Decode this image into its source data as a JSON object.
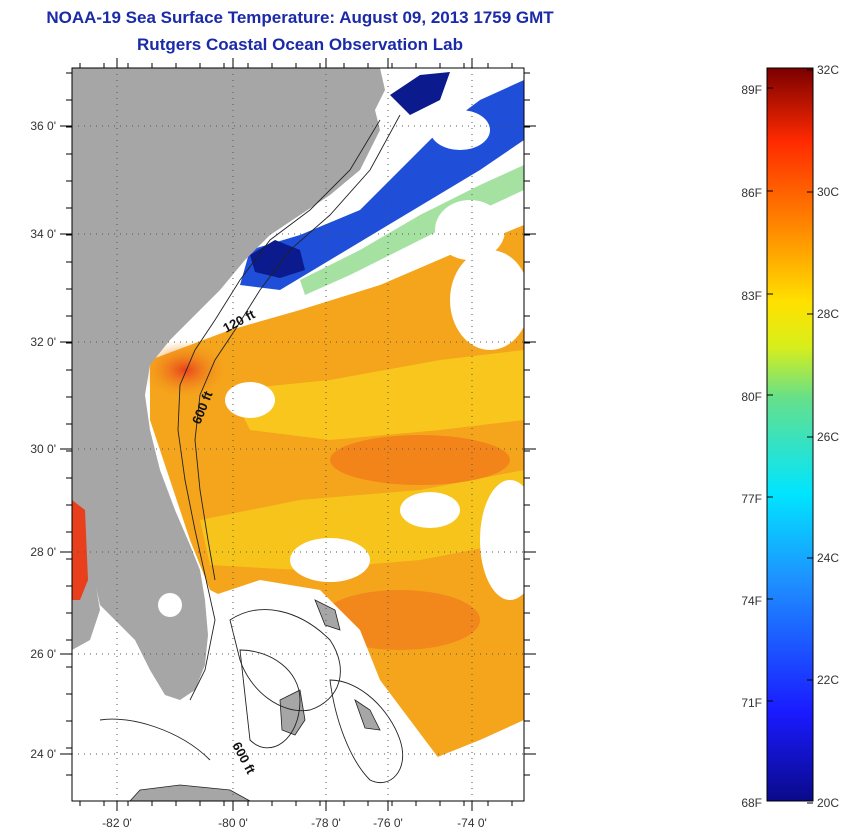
{
  "header": {
    "title": "NOAA-19 Sea Surface Temperature:  August 09, 2013 1759 GMT",
    "subtitle": "Rutgers Coastal Ocean Observation Lab"
  },
  "map": {
    "lat_labels": [
      "36 0'",
      "34 0'",
      "32 0'",
      "30 0'",
      "28 0'",
      "26 0'",
      "24 0'"
    ],
    "lon_labels": [
      "-82 0'",
      "-80 0'",
      "-78 0'",
      "-76 0'",
      "-74 0'"
    ],
    "contour_labels": [
      "120 ft",
      "600 ft",
      "600 ft"
    ],
    "colors": {
      "land": "#a6a6a6",
      "cloud": "#ffffff",
      "warm": "#f29a1a",
      "hot": "#e8401c",
      "cool": "#1f4fd8",
      "cold": "#0b1a8c"
    }
  },
  "colorbar": {
    "f_labels": [
      "89F",
      "86F",
      "83F",
      "80F",
      "77F",
      "74F",
      "71F",
      "68F"
    ],
    "c_labels": [
      "32C",
      "30C",
      "28C",
      "26C",
      "24C",
      "22C",
      "20C"
    ]
  }
}
